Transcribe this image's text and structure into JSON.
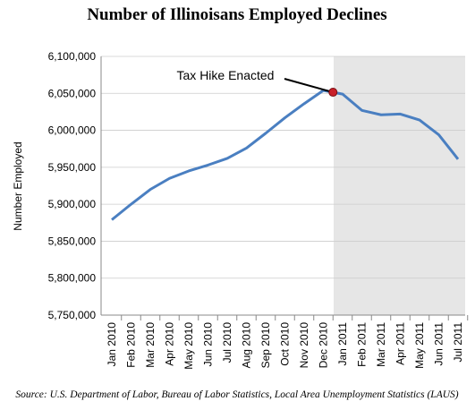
{
  "chart_data": {
    "type": "line",
    "title": "Number of Illinoisans Employed Declines",
    "y_label": "Number  Employed",
    "annotation": "Tax Hike Enacted",
    "source": "Source: U.S. Department of  Labor, Bureau of  Labor Statistics, Local Area Unemployment Statistics (LAUS)",
    "categories": [
      "Jan 2010",
      "Feb 2010",
      "Mar 2010",
      "Apr 2010",
      "May 2010",
      "Jun 2010",
      "Jul 2010",
      "Aug 2010",
      "Sep 2010",
      "Oct 2010",
      "Nov 2010",
      "Dec 2010",
      "Jan 2011",
      "Feb 2011",
      "Mar 2011",
      "Apr 2011",
      "May 2011",
      "Jun 2011",
      "Jul 2011"
    ],
    "series": [
      {
        "name": "Number Employed",
        "color": "#4a7fc1",
        "values": [
          5879000,
          5900000,
          5920000,
          5935000,
          5945000,
          5953000,
          5962000,
          5976000,
          5996000,
          6017000,
          6036000,
          6054000,
          6049000,
          6027000,
          6021000,
          6022000,
          6014000,
          5994000,
          5961000
        ]
      }
    ],
    "ylim": [
      5750000,
      6100000
    ],
    "yticks": [
      {
        "value": 5750000,
        "label": "5,750,000"
      },
      {
        "value": 5800000,
        "label": "5,800,000"
      },
      {
        "value": 5850000,
        "label": "5,850,000"
      },
      {
        "value": 5900000,
        "label": "5,900,000"
      },
      {
        "value": 5950000,
        "label": "5,950,000"
      },
      {
        "value": 6000000,
        "label": "6,000,000"
      },
      {
        "value": 6050000,
        "label": "6,050,000"
      },
      {
        "value": 6100000,
        "label": "6,100,000"
      }
    ],
    "grid": true
  }
}
